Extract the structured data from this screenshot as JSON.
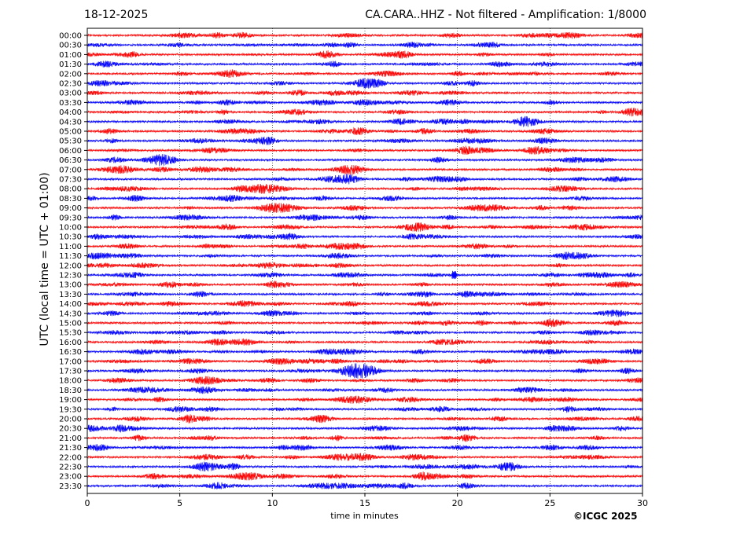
{
  "header": {
    "date": "18-12-2025",
    "station_title": "CA.CARA..HHZ - Not filtered - Amplification: 1/8000"
  },
  "footer": {
    "copyright": "©ICGC 2025"
  },
  "colors": {
    "odd_rows": "#ff0000",
    "even_rows": "#0000ff",
    "grid": "#000000"
  },
  "chart_data": {
    "type": "line",
    "title": "CA.CARA..HHZ - Not filtered - Amplification: 1/8000",
    "xlabel": "time in minutes",
    "ylabel": "UTC (local time = UTC + 01:00)",
    "xlim": [
      0,
      30
    ],
    "x_ticks": [
      "0",
      "5",
      "10",
      "15",
      "20",
      "25",
      "30"
    ],
    "grid": "vertical dotted lines at x ticks",
    "row_labels": [
      "00:00",
      "00:30",
      "01:00",
      "01:30",
      "02:00",
      "02:30",
      "03:00",
      "03:30",
      "04:00",
      "04:30",
      "05:00",
      "05:30",
      "06:00",
      "06:30",
      "07:00",
      "07:30",
      "08:00",
      "08:30",
      "09:00",
      "09:30",
      "10:00",
      "10:30",
      "11:00",
      "11:30",
      "12:00",
      "12:30",
      "13:00",
      "13:30",
      "14:00",
      "14:30",
      "15:00",
      "15:30",
      "16:00",
      "16:30",
      "17:00",
      "17:30",
      "18:00",
      "18:30",
      "19:00",
      "19:30",
      "20:00",
      "20:30",
      "21:00",
      "21:30",
      "22:00",
      "22:30",
      "23:00",
      "23:30"
    ],
    "row_colors": "alternating red (00:00, 01:00, ...) and blue (00:30, 01:30, ...)",
    "events": [
      {
        "row": "12:30",
        "minute": 19.8,
        "description": "largest spike"
      }
    ]
  }
}
